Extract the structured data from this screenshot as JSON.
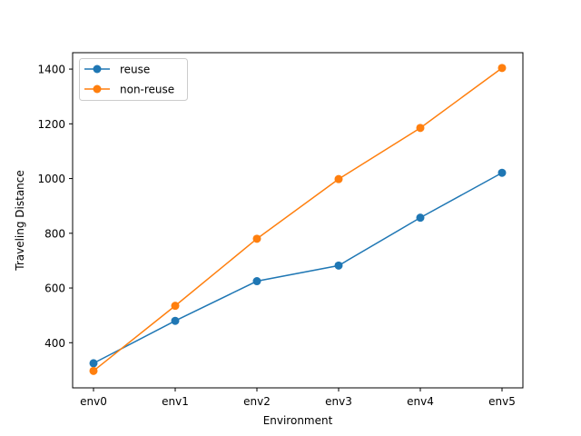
{
  "chart_data": {
    "type": "line",
    "title": "",
    "xlabel": "Environment",
    "ylabel": "Traveling Distance",
    "categories": [
      "env0",
      "env1",
      "env2",
      "env3",
      "env4",
      "env5"
    ],
    "ylim": [
      235,
      1460
    ],
    "yticks": [
      400,
      600,
      800,
      1000,
      1200,
      1400
    ],
    "grid": false,
    "legend_position": "top-left",
    "series": [
      {
        "name": "reuse",
        "color": "#1f77b4",
        "values": [
          325,
          480,
          625,
          682,
          857,
          1021
        ]
      },
      {
        "name": "non-reuse",
        "color": "#ff7f0e",
        "values": [
          297,
          535,
          780,
          998,
          1185,
          1404
        ]
      }
    ]
  }
}
